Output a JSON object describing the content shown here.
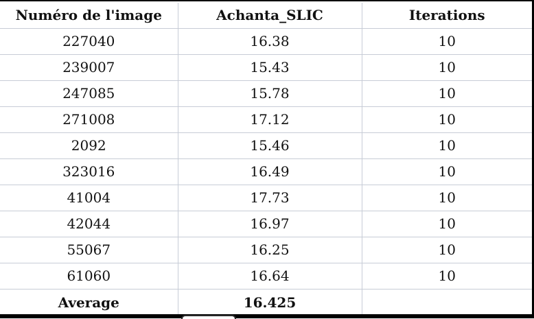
{
  "table": {
    "headers": [
      "Numéro de l'image",
      "Achanta_SLIC",
      "Iterations"
    ],
    "rows": [
      [
        "227040",
        "16.38",
        "10"
      ],
      [
        "239007",
        "15.43",
        "10"
      ],
      [
        "247085",
        "15.78",
        "10"
      ],
      [
        "271008",
        "17.12",
        "10"
      ],
      [
        "2092",
        "15.46",
        "10"
      ],
      [
        "323016",
        "16.49",
        "10"
      ],
      [
        "41004",
        "17.73",
        "10"
      ],
      [
        "42044",
        "16.97",
        "10"
      ],
      [
        "55067",
        "16.25",
        "10"
      ],
      [
        "61060",
        "16.64",
        "10"
      ]
    ],
    "footer": [
      "Average",
      "16.425",
      ""
    ]
  }
}
